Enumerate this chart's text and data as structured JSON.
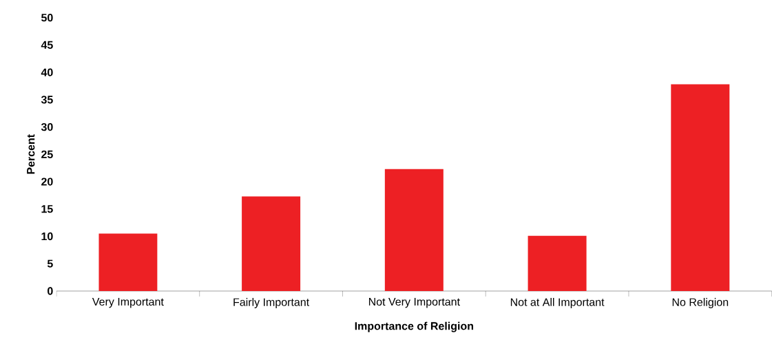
{
  "chart_data": {
    "type": "bar",
    "xlabel": "Importance of Religion",
    "ylabel": "Percent",
    "categories": [
      "Very Important",
      "Fairly Important",
      "Not Very Important",
      "Not at All Important",
      "No Religion"
    ],
    "values": [
      10.5,
      17.3,
      22.3,
      10.1,
      37.8
    ],
    "color": "#ed2024",
    "ylim": [
      0,
      50
    ],
    "yticks": [
      0,
      5,
      10,
      15,
      20,
      25,
      30,
      35,
      40,
      45,
      50
    ]
  }
}
